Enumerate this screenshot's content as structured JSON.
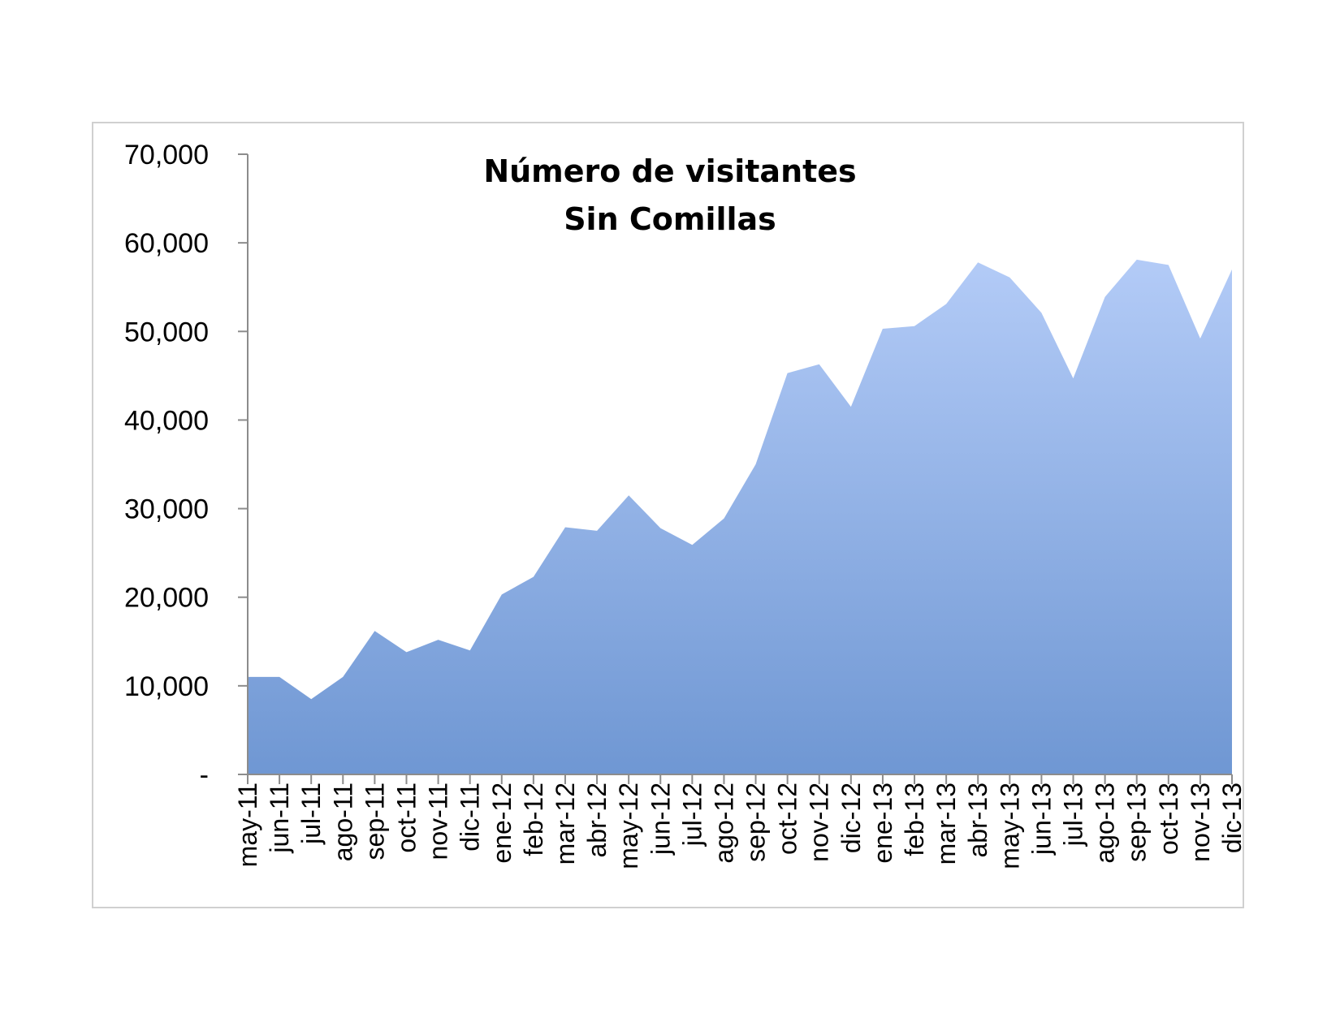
{
  "chart_data": {
    "type": "area",
    "title": "Número de visitantes",
    "subtitle": "Sin Comillas",
    "xlabel": "",
    "ylabel": "",
    "ylim": [
      0,
      70000
    ],
    "yticks": [
      0,
      10000,
      20000,
      30000,
      40000,
      50000,
      60000,
      70000
    ],
    "ytick_labels": [
      "-",
      "10,000",
      "20,000",
      "30,000",
      "40,000",
      "50,000",
      "60,000",
      "70,000"
    ],
    "categories": [
      "may-11",
      "jun-11",
      "jul-11",
      "ago-11",
      "sep-11",
      "oct-11",
      "nov-11",
      "dic-11",
      "ene-12",
      "feb-12",
      "mar-12",
      "abr-12",
      "may-12",
      "jun-12",
      "jul-12",
      "ago-12",
      "sep-12",
      "oct-12",
      "nov-12",
      "dic-12",
      "ene-13",
      "feb-13",
      "mar-13",
      "abr-13",
      "may-13",
      "jun-13",
      "jul-13",
      "ago-13",
      "sep-13",
      "oct-13",
      "nov-13",
      "dic-13"
    ],
    "values": [
      11000,
      11000,
      8500,
      11000,
      16200,
      13800,
      15200,
      14000,
      20300,
      22300,
      27900,
      27500,
      31500,
      27800,
      25900,
      28900,
      35000,
      45300,
      46300,
      41500,
      50300,
      50600,
      53100,
      57800,
      56100,
      52100,
      44700,
      53900,
      58100,
      57500,
      49200,
      57000
    ],
    "grid": false,
    "legend": "none",
    "fill_top": "#b3cbf7",
    "fill_bottom": "#6f97d3"
  }
}
